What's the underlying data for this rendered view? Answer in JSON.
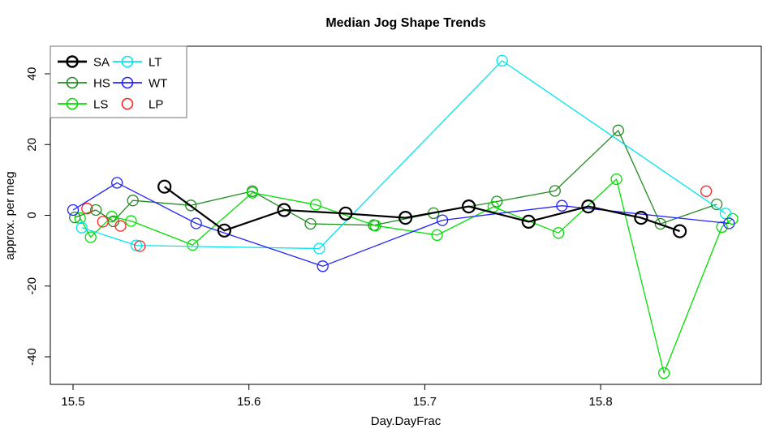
{
  "title": "Median Jog Shape Trends",
  "chart_data": {
    "type": "line",
    "title": "Median Jog Shape Trends",
    "xlabel": "Day.DayFrac",
    "ylabel": "approx. per meg",
    "xlim": [
      15.487,
      15.891
    ],
    "ylim": [
      -47.8,
      47.8
    ],
    "xticks": [
      15.5,
      15.6,
      15.7,
      15.8
    ],
    "yticks": [
      -40,
      -20,
      0,
      20,
      40
    ],
    "grid": false,
    "legend_position": "top-left",
    "marker": "open-circle",
    "series": [
      {
        "name": "HS",
        "color": "#228B22",
        "line": true,
        "line_width": 1.3,
        "marker_r": 6.5,
        "points": [
          [
            15.501,
            -0.6
          ],
          [
            15.513,
            1.5
          ],
          [
            15.523,
            -1.7
          ],
          [
            15.534,
            4.2
          ],
          [
            15.567,
            2.8
          ],
          [
            15.602,
            6.8
          ],
          [
            15.635,
            -2.4
          ],
          [
            15.671,
            -2.8
          ],
          [
            15.705,
            0.6
          ],
          [
            15.741,
            3.9
          ],
          [
            15.774,
            6.9
          ],
          [
            15.81,
            24.0
          ],
          [
            15.834,
            -2.4
          ],
          [
            15.866,
            3.1
          ]
        ]
      },
      {
        "name": "LS",
        "color": "#00E000",
        "line": true,
        "line_width": 1.3,
        "marker_r": 6.5,
        "points": [
          [
            15.504,
            -0.8
          ],
          [
            15.51,
            -6.2
          ],
          [
            15.522,
            -0.4
          ],
          [
            15.533,
            -1.6
          ],
          [
            15.568,
            -8.4
          ],
          [
            15.602,
            6.4
          ],
          [
            15.638,
            3.0
          ],
          [
            15.672,
            -2.9
          ],
          [
            15.707,
            -5.6
          ],
          [
            15.739,
            2.4
          ],
          [
            15.776,
            -5.0
          ],
          [
            15.809,
            10.2
          ],
          [
            15.836,
            -44.6
          ],
          [
            15.869,
            -3.3
          ],
          [
            15.875,
            -1.0
          ]
        ]
      },
      {
        "name": "LT",
        "color": "#00E5EE",
        "line": true,
        "line_width": 1.3,
        "marker_r": 6.5,
        "points": [
          [
            15.505,
            -3.5
          ],
          [
            15.536,
            -8.5
          ],
          [
            15.64,
            -9.4
          ],
          [
            15.744,
            43.7
          ],
          [
            15.871,
            0.5
          ]
        ]
      },
      {
        "name": "WT",
        "color": "#2222FF",
        "line": true,
        "line_width": 1.3,
        "marker_r": 6.5,
        "points": [
          [
            15.5,
            1.5
          ],
          [
            15.525,
            9.2
          ],
          [
            15.57,
            -2.3
          ],
          [
            15.642,
            -14.4
          ],
          [
            15.71,
            -1.4
          ],
          [
            15.778,
            2.7
          ],
          [
            15.873,
            -2.3
          ]
        ]
      },
      {
        "name": "LP",
        "color": "#FF2222",
        "line": false,
        "line_width": 1.3,
        "marker_r": 6.5,
        "points": [
          [
            15.508,
            1.9
          ],
          [
            15.517,
            -1.8
          ],
          [
            15.527,
            -3.0
          ],
          [
            15.538,
            -8.7
          ],
          [
            15.86,
            6.8
          ]
        ]
      },
      {
        "name": "SA",
        "color": "#000000",
        "line": true,
        "line_width": 2.2,
        "marker_r": 7.5,
        "points": [
          [
            15.552,
            8.1
          ],
          [
            15.586,
            -4.3
          ],
          [
            15.62,
            1.5
          ],
          [
            15.655,
            0.5
          ],
          [
            15.689,
            -0.7
          ],
          [
            15.725,
            2.5
          ],
          [
            15.759,
            -1.8
          ],
          [
            15.793,
            2.5
          ],
          [
            15.823,
            -0.7
          ],
          [
            15.845,
            -4.5
          ]
        ]
      }
    ],
    "legend": {
      "columns": [
        [
          "SA",
          "HS",
          "LS"
        ],
        [
          "LT",
          "WT",
          "LP"
        ]
      ],
      "border_color": "#888888"
    }
  }
}
